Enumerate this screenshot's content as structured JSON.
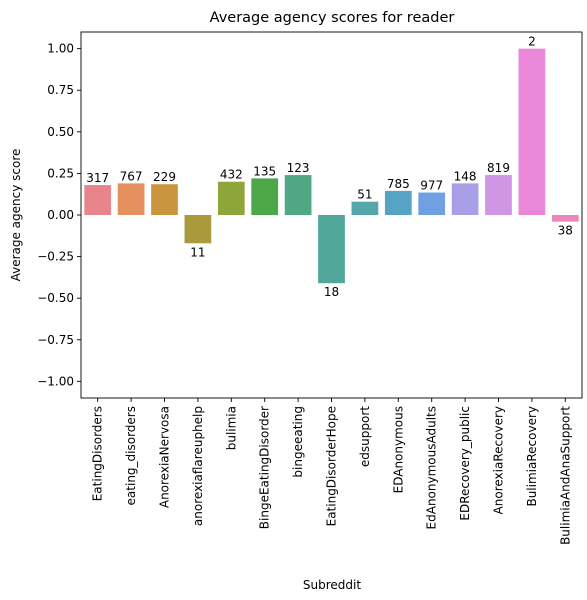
{
  "chart_data": {
    "type": "bar",
    "title": "Average agency scores for reader",
    "xlabel": "Subreddit",
    "ylabel": "Average agency score",
    "ylim": [
      -1.1,
      1.1
    ],
    "yticks": [
      1.0,
      0.75,
      0.5,
      0.25,
      0.0,
      -0.25,
      -0.5,
      -0.75,
      -1.0
    ],
    "ytick_labels": [
      "1.00",
      "0.75",
      "0.50",
      "0.25",
      "0.00",
      "−0.25",
      "−0.50",
      "−0.75",
      "−1.00"
    ],
    "grid": false,
    "legend": "none",
    "categories": [
      "EatingDisorders",
      "eating_disorders",
      "AnorexiaNervosa",
      "anorexiaflareuphelp",
      "bulimia",
      "BingeEatingDisorder",
      "bingeeating",
      "EatingDisorderHope",
      "edsupport",
      "EDAnonymous",
      "EdAnonymousAdults",
      "EDRecovery_public",
      "AnorexiaRecovery",
      "BulimiaRecovery",
      "BulimiaAndAnaSupport"
    ],
    "values": [
      0.18,
      0.19,
      0.185,
      -0.17,
      0.2,
      0.22,
      0.24,
      -0.41,
      0.08,
      0.145,
      0.135,
      0.19,
      0.24,
      1.0,
      -0.04
    ],
    "counts": [
      "317",
      "767",
      "229",
      "11",
      "432",
      "135",
      "123",
      "18",
      "51",
      "785",
      "977",
      "148",
      "819",
      "2",
      "38"
    ],
    "colors": [
      "#e8858c",
      "#e6905f",
      "#c9963f",
      "#ab9a3c",
      "#8ea53a",
      "#4ba748",
      "#50a785",
      "#52a79b",
      "#55a7ac",
      "#56a4c5",
      "#6fa0e1",
      "#a99fe8",
      "#cf96e6",
      "#ea87d9",
      "#ec86b9"
    ]
  }
}
